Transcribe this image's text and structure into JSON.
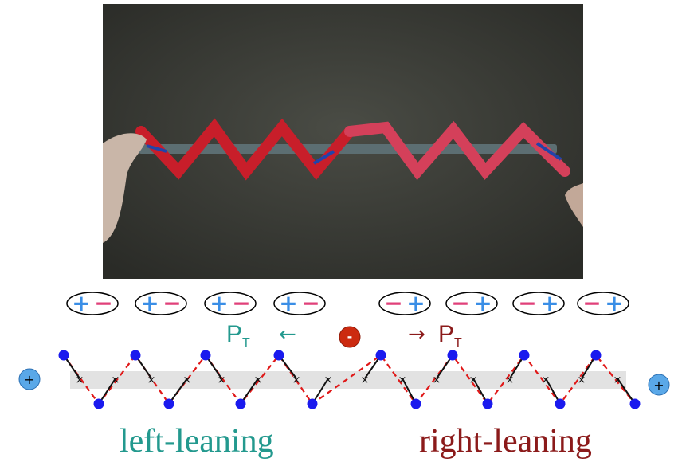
{
  "colors": {
    "plus": "#3a8ee6",
    "minus": "#e0407a",
    "node": "#1a1aee",
    "zigzag_red": "#e01818",
    "left_text": "#23998e",
    "right_text": "#8b1a1a",
    "charge_neg": "#cc2a10",
    "charge_pos": "#5aa8e8"
  },
  "dipoles_left": [
    {
      "a": "+",
      "b": "−"
    },
    {
      "a": "+",
      "b": "−"
    },
    {
      "a": "+",
      "b": "−"
    },
    {
      "a": "+",
      "b": "−"
    }
  ],
  "dipoles_right": [
    {
      "a": "−",
      "b": "+"
    },
    {
      "a": "−",
      "b": "+"
    },
    {
      "a": "−",
      "b": "+"
    },
    {
      "a": "−",
      "b": "+"
    }
  ],
  "left_pt": {
    "symbol": "P",
    "sub": "T",
    "arrow": "←"
  },
  "right_pt": {
    "symbol": "P",
    "sub": "T",
    "arrow": "→"
  },
  "center_charge": "-",
  "end_charge_left": "+",
  "end_charge_right": "+",
  "left_label": "left-leaning",
  "right_label": "right-leaning"
}
